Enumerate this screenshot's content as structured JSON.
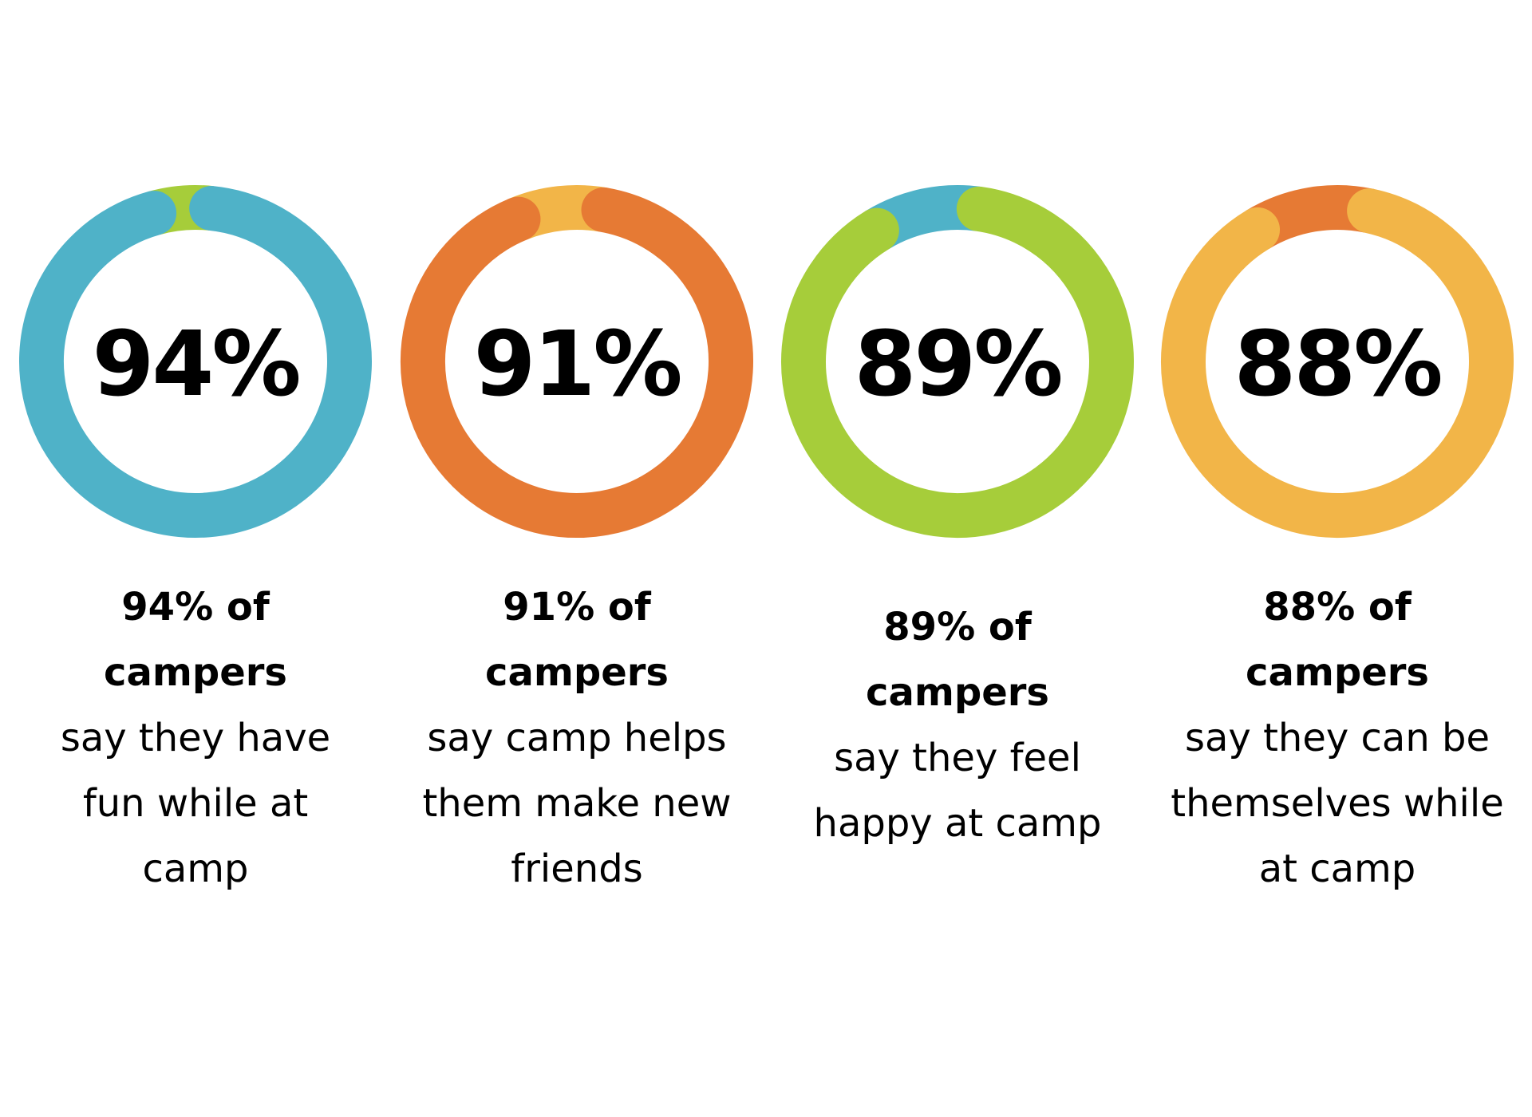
{
  "chart_data": [
    {
      "type": "donut",
      "values": [
        94,
        6
      ],
      "value_labels": [
        "94%",
        null
      ],
      "colors": [
        "#4fb2c8",
        "#a6cd3a"
      ],
      "label_bold": "94% of campers",
      "label": "say they have fun while at camp"
    },
    {
      "type": "donut",
      "values": [
        91,
        9
      ],
      "value_labels": [
        "91%",
        null
      ],
      "colors": [
        "#e67a34",
        "#f2b548"
      ],
      "label_bold": "91% of campers",
      "label": "say camp helps them make new friends"
    },
    {
      "type": "donut",
      "values": [
        89,
        11
      ],
      "value_labels": [
        "89%",
        null
      ],
      "colors": [
        "#a6cd3a",
        "#4fb2c8"
      ],
      "label_bold": "89% of campers",
      "label": "say they feel happy at camp"
    },
    {
      "type": "donut",
      "values": [
        88,
        12
      ],
      "value_labels": [
        "88%",
        null
      ],
      "colors": [
        "#f2b548",
        "#e67a34"
      ],
      "label_bold": "88% of campers",
      "label": "say they can be themselves while at camp"
    }
  ]
}
